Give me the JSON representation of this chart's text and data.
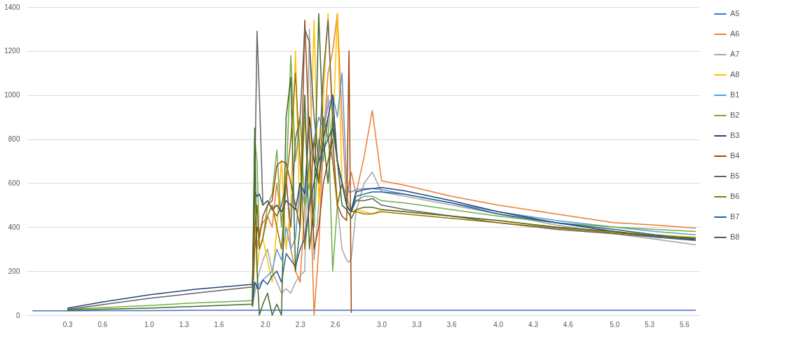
{
  "chart_data": {
    "type": "line",
    "x": [
      0,
      0.3,
      0.6,
      1.0,
      1.4,
      1.89,
      1.91,
      1.93,
      1.95,
      1.98,
      2.02,
      2.06,
      2.1,
      2.14,
      2.18,
      2.22,
      2.26,
      2.3,
      2.34,
      2.38,
      2.42,
      2.46,
      2.5,
      2.54,
      2.58,
      2.62,
      2.66,
      2.7,
      2.72,
      2.74,
      2.78,
      2.85,
      2.92,
      3.0,
      3.2,
      3.6,
      4.0,
      4.5,
      5.0,
      5.35,
      5.7
    ],
    "series": [
      {
        "name": "A5",
        "color": "#4472c4",
        "values": [
          20,
          20,
          21,
          21,
          22,
          22,
          22,
          22,
          22,
          22,
          22,
          22,
          22,
          22,
          22,
          22,
          22,
          22,
          22,
          22,
          22,
          22,
          22,
          22,
          22,
          22,
          22,
          22,
          22,
          22,
          22,
          22,
          22,
          22,
          22,
          22,
          22,
          22,
          22,
          22,
          22
        ]
      },
      {
        "name": "A6",
        "color": "#ed7d31",
        "values": [
          null,
          null,
          null,
          null,
          null,
          38,
          430,
          300,
          380,
          420,
          450,
          400,
          600,
          420,
          650,
          300,
          200,
          150,
          500,
          700,
          0,
          300,
          800,
          1100,
          1200,
          1370,
          900,
          500,
          600,
          650,
          550,
          720,
          930,
          610,
          590,
          540,
          500,
          460,
          420,
          410,
          395
        ]
      },
      {
        "name": "A7",
        "color": "#a5a5a5",
        "values": [
          null,
          null,
          null,
          null,
          null,
          38,
          100,
          150,
          200,
          250,
          300,
          200,
          150,
          100,
          120,
          100,
          150,
          180,
          200,
          1300,
          250,
          500,
          800,
          1000,
          700,
          500,
          300,
          250,
          240,
          260,
          470,
          600,
          650,
          560,
          540,
          500,
          460,
          410,
          370,
          345,
          320
        ]
      },
      {
        "name": "A8",
        "color": "#ffc000",
        "values": [
          null,
          null,
          null,
          null,
          null,
          40,
          600,
          200,
          300,
          350,
          250,
          150,
          400,
          700,
          300,
          500,
          1200,
          400,
          900,
          600,
          1340,
          500,
          1000,
          1370,
          800,
          1370,
          600,
          500,
          480,
          470,
          480,
          470,
          460,
          480,
          470,
          450,
          430,
          400,
          380,
          365,
          355
        ]
      },
      {
        "name": "B1",
        "color": "#5b9bd5",
        "values": [
          null,
          null,
          null,
          null,
          null,
          40,
          150,
          120,
          140,
          160,
          180,
          200,
          300,
          250,
          400,
          300,
          350,
          600,
          500,
          700,
          800,
          900,
          850,
          950,
          1000,
          900,
          1100,
          600,
          560,
          560,
          570,
          575,
          575,
          570,
          550,
          510,
          470,
          430,
          400,
          380,
          365
        ]
      },
      {
        "name": "B2",
        "color": "#70ad47",
        "values": [
          null,
          27,
          34,
          44,
          56,
          66,
          800,
          700,
          300,
          350,
          500,
          550,
          750,
          400,
          600,
          1180,
          700,
          900,
          500,
          600,
          400,
          800,
          700,
          900,
          200,
          500,
          600,
          540,
          500,
          480,
          520,
          540,
          540,
          520,
          510,
          480,
          450,
          420,
          400,
          390,
          380
        ]
      },
      {
        "name": "B3",
        "color": "#264478",
        "values": [
          null,
          32,
          60,
          92,
          118,
          140,
          560,
          540,
          550,
          500,
          520,
          480,
          500,
          470,
          520,
          500,
          480,
          600,
          550,
          900,
          700,
          600,
          800,
          900,
          1000,
          700,
          600,
          500,
          480,
          480,
          560,
          570,
          575,
          580,
          565,
          520,
          470,
          420,
          380,
          355,
          340
        ]
      },
      {
        "name": "B4",
        "color": "#9e480e",
        "values": [
          null,
          null,
          null,
          null,
          null,
          40,
          300,
          400,
          350,
          450,
          500,
          520,
          680,
          700,
          690,
          600,
          500,
          400,
          1340,
          800,
          300,
          400,
          600,
          700,
          800,
          500,
          450,
          430,
          1200,
          10,
          null,
          null,
          null,
          null,
          null,
          null,
          null,
          null,
          null,
          null,
          null
        ]
      },
      {
        "name": "B5",
        "color": "#636363",
        "values": [
          null,
          26,
          48,
          76,
          100,
          128,
          600,
          1290,
          1000,
          500,
          520,
          480,
          450,
          500,
          600,
          400,
          800,
          900,
          1300,
          1240,
          900,
          700,
          1100,
          1340,
          900,
          700,
          600,
          500,
          480,
          470,
          520,
          520,
          530,
          500,
          480,
          450,
          420,
          390,
          370,
          355,
          345
        ]
      },
      {
        "name": "B6",
        "color": "#997300",
        "values": [
          null,
          null,
          null,
          null,
          null,
          42,
          400,
          500,
          300,
          350,
          450,
          500,
          400,
          300,
          600,
          800,
          1100,
          700,
          300,
          500,
          800,
          600,
          900,
          800,
          700,
          500,
          600,
          500,
          480,
          470,
          470,
          460,
          460,
          470,
          460,
          440,
          420,
          395,
          375,
          360,
          350
        ]
      },
      {
        "name": "B7",
        "color": "#255e91",
        "values": [
          null,
          null,
          null,
          null,
          null,
          45,
          150,
          130,
          120,
          160,
          140,
          180,
          200,
          150,
          280,
          250,
          220,
          300,
          350,
          500,
          600,
          700,
          750,
          800,
          850,
          700,
          600,
          500,
          480,
          470,
          540,
          550,
          560,
          560,
          550,
          510,
          460,
          420,
          390,
          365,
          345
        ]
      },
      {
        "name": "B8",
        "color": "#43682b",
        "values": [
          null,
          23,
          27,
          32,
          40,
          50,
          850,
          200,
          0,
          50,
          100,
          0,
          50,
          0,
          900,
          1080,
          200,
          400,
          1000,
          300,
          500,
          1370,
          800,
          600,
          900,
          700,
          500,
          480,
          460,
          440,
          480,
          490,
          490,
          480,
          470,
          450,
          430,
          400,
          380,
          360,
          350
        ]
      }
    ],
    "xlim": [
      -0.05,
      5.73
    ],
    "xticks": [
      {
        "value": 0.3,
        "label": "0.3"
      },
      {
        "value": 0.6,
        "label": "0.6"
      },
      {
        "value": 1.0,
        "label": "1.0"
      },
      {
        "value": 1.3,
        "label": "1.3"
      },
      {
        "value": 1.6,
        "label": "1.6"
      },
      {
        "value": 2.0,
        "label": "2.0"
      },
      {
        "value": 2.3,
        "label": "2.3"
      },
      {
        "value": 2.6,
        "label": "2.6"
      },
      {
        "value": 3.0,
        "label": "3.0"
      },
      {
        "value": 3.3,
        "label": "3.3"
      },
      {
        "value": 3.6,
        "label": "3.6"
      },
      {
        "value": 4.0,
        "label": "4.0"
      },
      {
        "value": 4.3,
        "label": "4.3"
      },
      {
        "value": 4.6,
        "label": "4.6"
      },
      {
        "value": 5.0,
        "label": "5.0"
      },
      {
        "value": 5.3,
        "label": "5.3"
      },
      {
        "value": 5.6,
        "label": "5.6"
      }
    ],
    "ylim": [
      0,
      1400
    ],
    "yticks": [
      0,
      200,
      400,
      600,
      800,
      1000,
      1200,
      1400
    ],
    "grid": "y",
    "legend": "right",
    "marker": "none",
    "line_style": "solid"
  }
}
